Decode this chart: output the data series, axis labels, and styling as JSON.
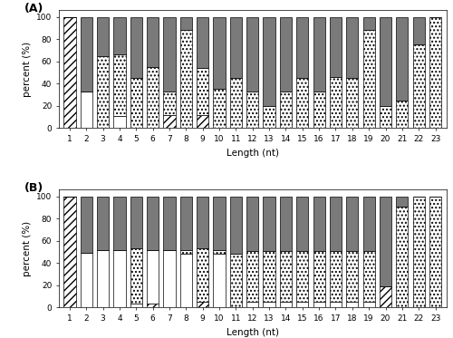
{
  "categories": [
    1,
    2,
    3,
    4,
    5,
    6,
    7,
    8,
    9,
    10,
    11,
    12,
    13,
    14,
    15,
    16,
    17,
    18,
    19,
    20,
    21,
    22,
    23
  ],
  "panel_A": {
    "G": [
      100,
      0,
      0,
      0,
      0,
      0,
      12,
      0,
      12,
      0,
      0,
      0,
      0,
      0,
      0,
      0,
      0,
      0,
      0,
      0,
      0,
      0,
      0
    ],
    "C": [
      0,
      33,
      0,
      11,
      0,
      0,
      0,
      0,
      0,
      0,
      0,
      0,
      0,
      0,
      0,
      0,
      0,
      0,
      0,
      0,
      0,
      0,
      0
    ],
    "A": [
      0,
      0,
      65,
      55,
      45,
      55,
      21,
      88,
      42,
      35,
      45,
      33,
      20,
      33,
      45,
      33,
      46,
      45,
      88,
      20,
      25,
      75,
      100
    ],
    "U": [
      0,
      67,
      35,
      34,
      55,
      45,
      67,
      12,
      46,
      65,
      55,
      67,
      80,
      67,
      55,
      67,
      54,
      55,
      12,
      80,
      75,
      25,
      0
    ]
  },
  "panel_B": {
    "G": [
      100,
      0,
      0,
      0,
      0,
      4,
      0,
      0,
      5,
      0,
      0,
      0,
      0,
      0,
      0,
      0,
      0,
      0,
      0,
      19,
      0,
      0,
      0
    ],
    "C": [
      0,
      49,
      52,
      52,
      4,
      48,
      52,
      48,
      0,
      48,
      0,
      5,
      5,
      5,
      5,
      5,
      5,
      5,
      5,
      0,
      0,
      0,
      0
    ],
    "A": [
      0,
      0,
      0,
      0,
      49,
      0,
      0,
      4,
      48,
      4,
      48,
      46,
      46,
      46,
      46,
      46,
      46,
      46,
      46,
      0,
      91,
      100,
      100
    ],
    "U": [
      0,
      51,
      48,
      48,
      47,
      48,
      48,
      48,
      47,
      48,
      52,
      49,
      49,
      49,
      49,
      49,
      49,
      49,
      49,
      81,
      9,
      0,
      0
    ]
  },
  "ylabel": "percent (%)",
  "xlabel": "Length (nt)",
  "yticks": [
    0,
    20,
    40,
    60,
    80,
    100
  ],
  "title_A": "(A)",
  "title_B": "(B)"
}
